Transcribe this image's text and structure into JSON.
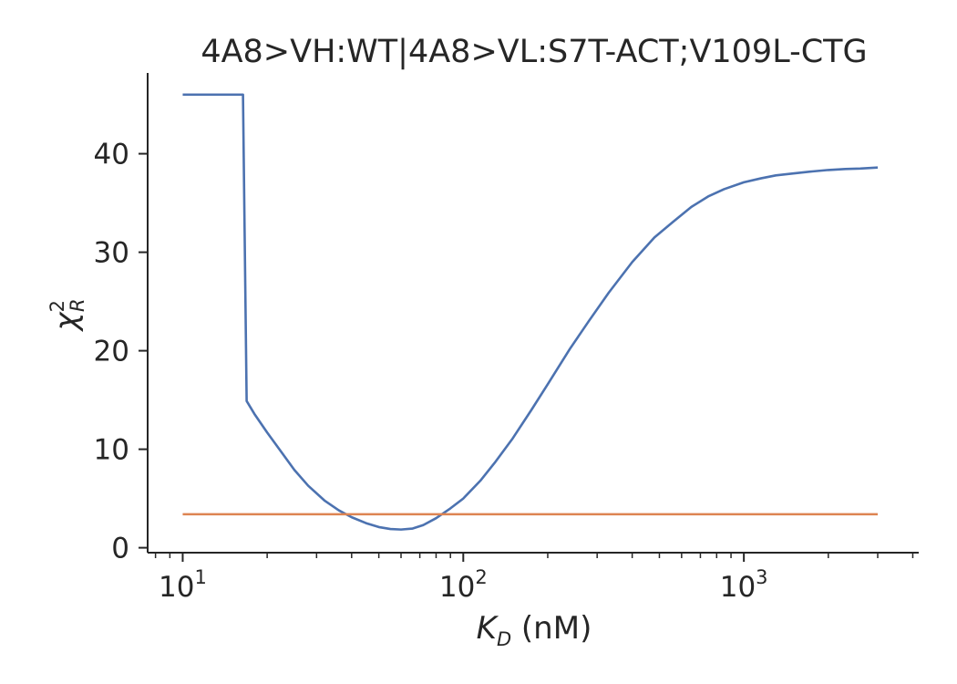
{
  "chart_data": {
    "type": "line",
    "title": "4A8>VH:WT|4A8>VL:S7T-ACT;V109L-CTG",
    "xlabel": {
      "symbol": "K",
      "subscript": "D",
      "unit": " (nM)"
    },
    "ylabel": {
      "symbol": "χ",
      "superscript": "2",
      "subscript": "R"
    },
    "xscale": "log",
    "xlim": [
      7.5,
      4200
    ],
    "ylim": [
      -0.5,
      48.2
    ],
    "grid": false,
    "legend": "none",
    "x_ticks": [
      {
        "value": 10,
        "base": "10",
        "exp": "1"
      },
      {
        "value": 100,
        "base": "10",
        "exp": "2"
      },
      {
        "value": 1000,
        "base": "10",
        "exp": "3"
      }
    ],
    "y_ticks": [
      {
        "value": 0,
        "label": "0"
      },
      {
        "value": 10,
        "label": "10"
      },
      {
        "value": 20,
        "label": "20"
      },
      {
        "value": 30,
        "label": "30"
      },
      {
        "value": 40,
        "label": "40"
      }
    ],
    "series": [
      {
        "color": "#4c72b0",
        "x": [
          10,
          12,
          14,
          16.4,
          16.9,
          18,
          20,
          22.5,
          25,
          28,
          32,
          36,
          40,
          45,
          50,
          55,
          60,
          66,
          72,
          80,
          90,
          100,
          115,
          130,
          150,
          175,
          200,
          240,
          280,
          330,
          400,
          480,
          560,
          650,
          750,
          850,
          1000,
          1150,
          1300,
          1500,
          1750,
          2000,
          2300,
          2600,
          3000
        ],
        "values": [
          46,
          46,
          46,
          46,
          14.9,
          13.6,
          11.7,
          9.7,
          7.9,
          6.3,
          4.8,
          3.8,
          3.1,
          2.5,
          2.1,
          1.9,
          1.85,
          1.95,
          2.3,
          3.0,
          4.0,
          5.0,
          6.8,
          8.7,
          11.1,
          14.0,
          16.6,
          20.2,
          23.0,
          25.9,
          29.0,
          31.5,
          33.1,
          34.6,
          35.7,
          36.4,
          37.1,
          37.5,
          37.8,
          38.0,
          38.2,
          38.35,
          38.45,
          38.5,
          38.6
        ]
      },
      {
        "color": "#dd8452",
        "x": [
          10,
          3000
        ],
        "values": [
          3.4,
          3.4
        ]
      }
    ]
  }
}
